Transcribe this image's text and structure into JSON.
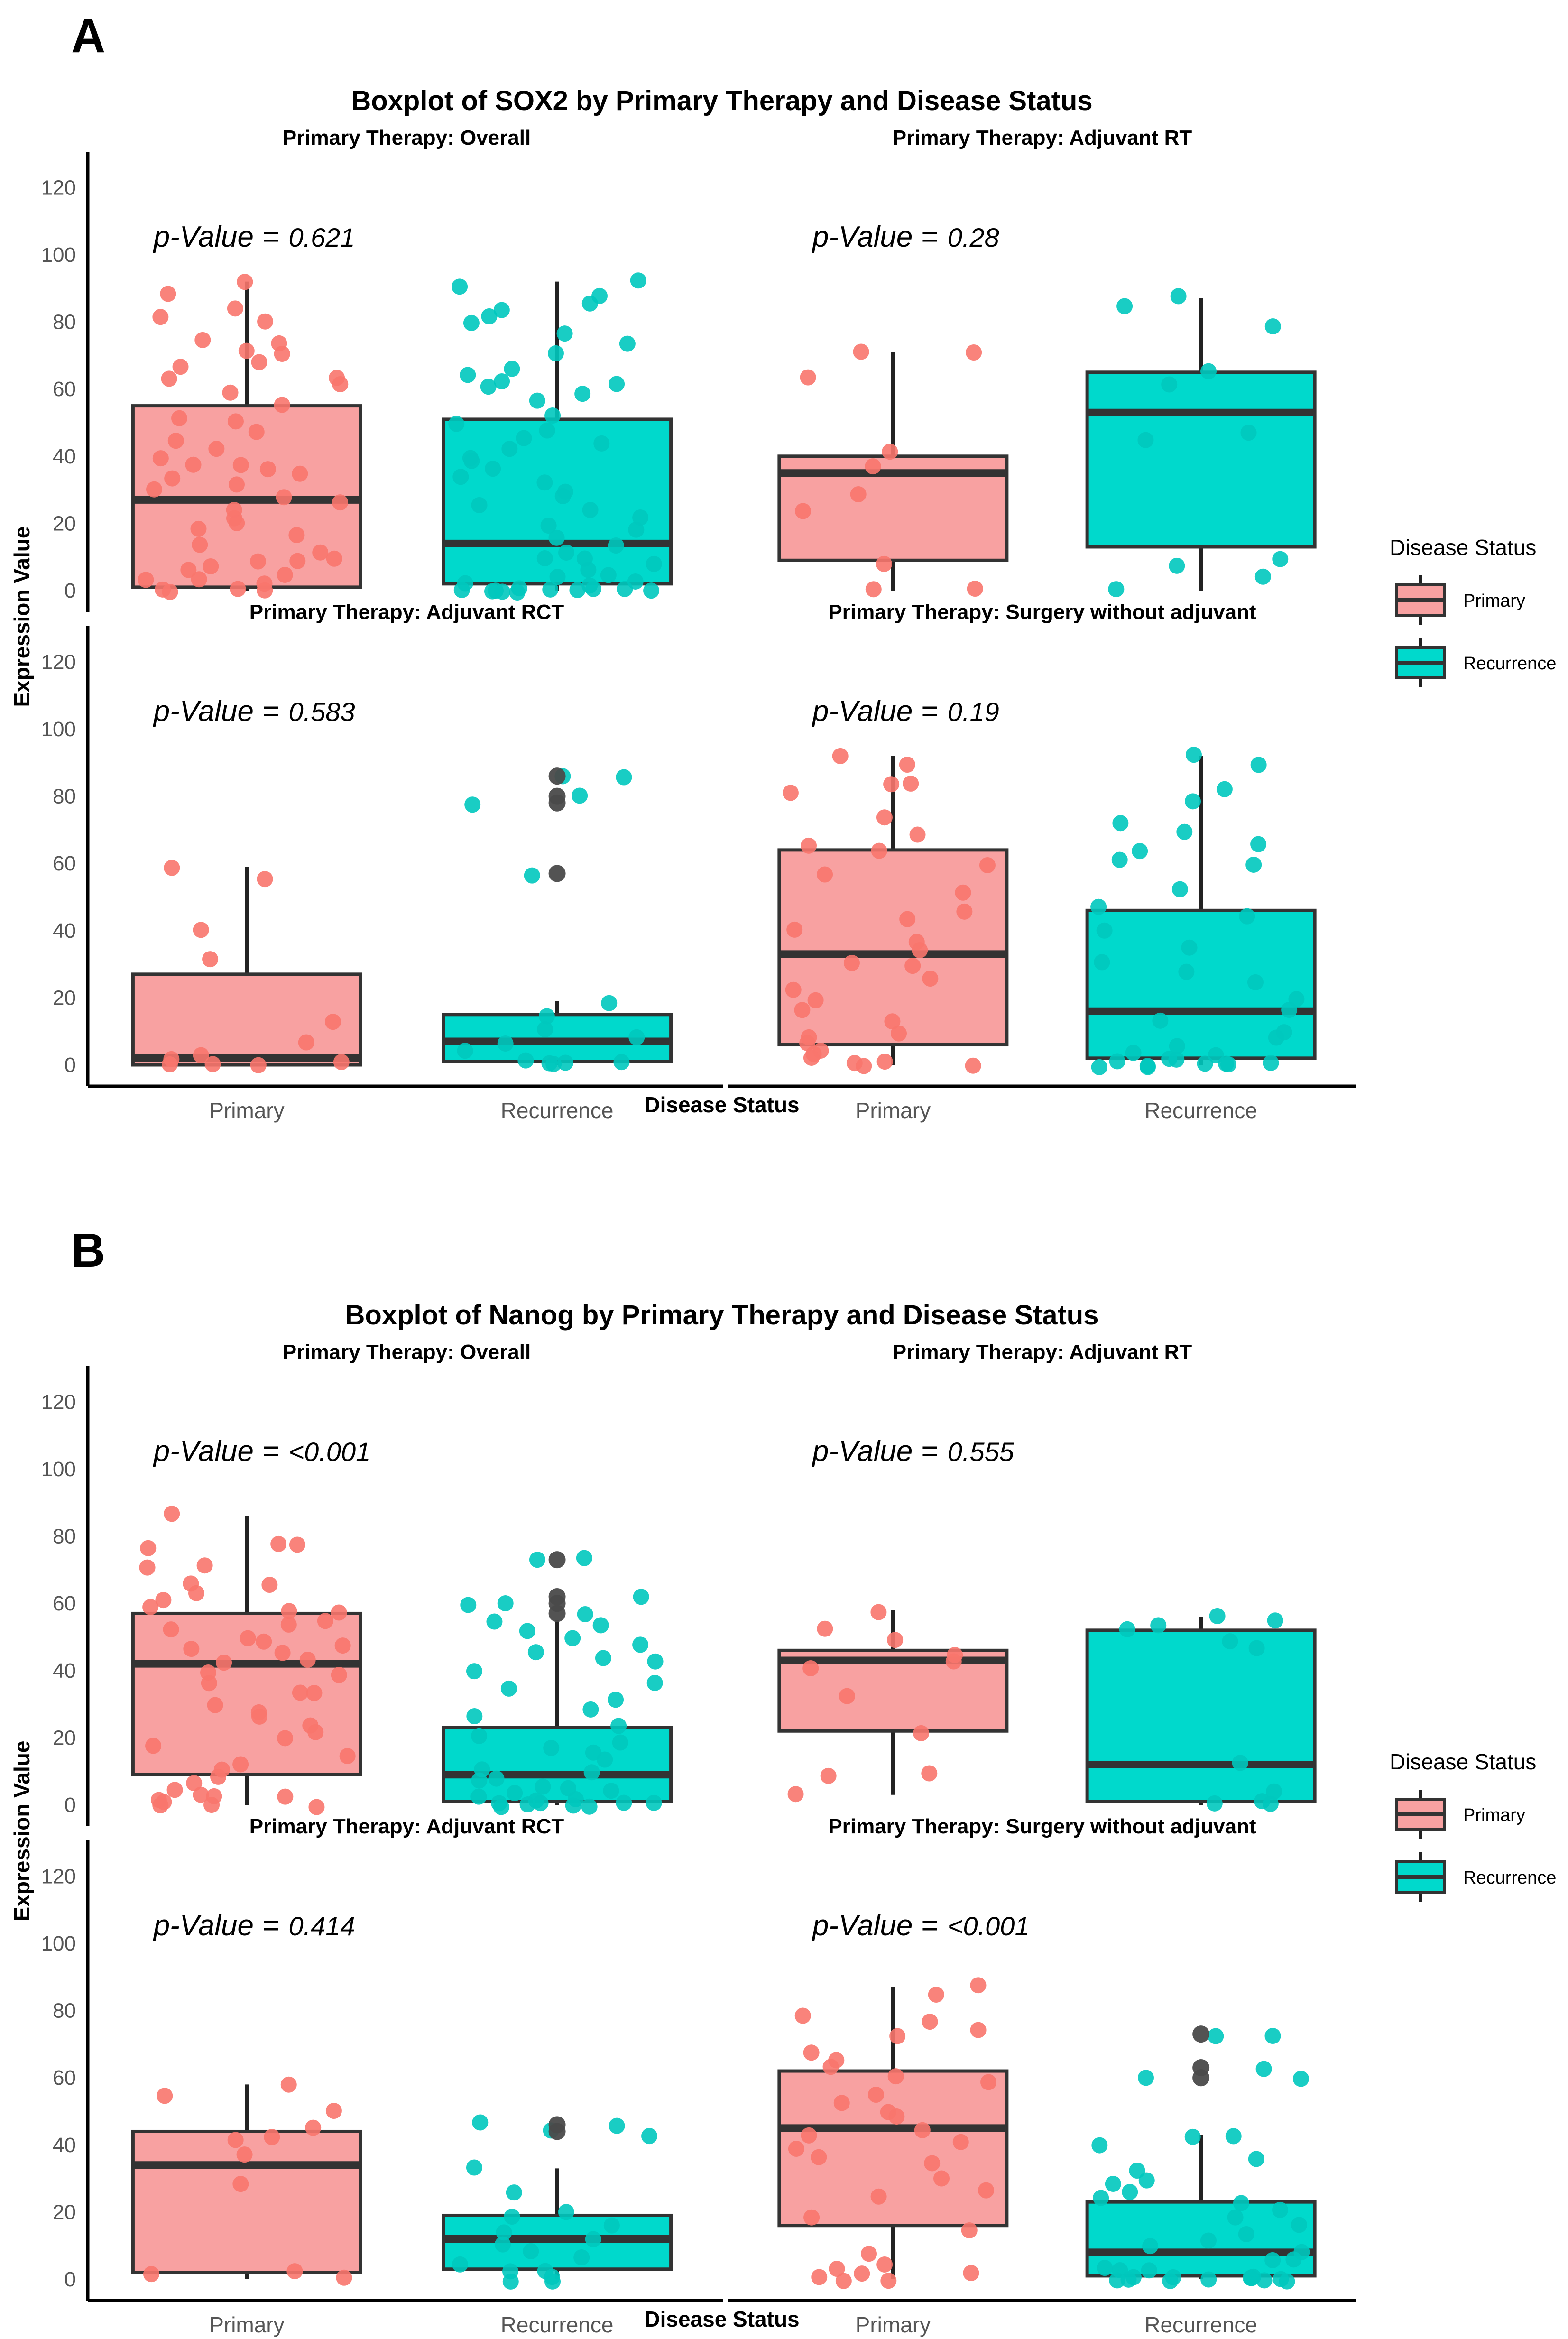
{
  "colors": {
    "primary_fill": "#F8A1A1",
    "primary_point": "#F8766D",
    "recurrence_fill": "#00D9CC",
    "recurrence_point": "#00C8BE",
    "outlier": "#4A4A4A",
    "axis": "#000000",
    "text": "#000000",
    "tick_text": "#555555"
  },
  "legend": {
    "title": "Disease Status",
    "items": [
      "Primary",
      "Recurrence"
    ]
  },
  "chart_data": [
    {
      "type": "boxplot",
      "letter": "A",
      "title": "Boxplot of SOX2 by Primary Therapy and Disease Status",
      "xlabel": "Disease Status",
      "ylabel": "Expression Value",
      "categories": [
        "Primary",
        "Recurrence"
      ],
      "y_ticks": [
        0,
        20,
        40,
        60,
        80,
        100,
        120
      ],
      "ylim": [
        0,
        125
      ],
      "p_label": "p-Value =",
      "facets": [
        {
          "label": "Primary Therapy: Overall",
          "p_value": "0.621",
          "boxes": [
            {
              "q1": 1,
              "median": 27,
              "q3": 55,
              "wmin": 0,
              "wmax": 92,
              "outliers": [],
              "points": [
                92,
                88,
                84,
                82,
                80,
                75,
                73,
                71,
                70,
                68,
                66,
                64,
                63,
                61,
                59,
                55,
                52,
                50,
                47,
                45,
                42,
                40,
                38,
                37,
                36,
                35,
                33,
                31,
                30,
                28,
                26,
                24,
                22,
                20,
                18,
                16,
                14,
                12,
                10,
                9,
                8,
                7,
                6,
                5,
                4,
                3,
                2,
                1,
                1,
                0,
                0
              ]
            },
            {
              "q1": 2,
              "median": 14,
              "q3": 51,
              "wmin": 0,
              "wmax": 92,
              "outliers": [],
              "points": [
                92,
                90,
                88,
                86,
                84,
                81,
                79,
                77,
                73,
                70,
                66,
                64,
                62,
                61,
                60,
                58,
                56,
                52,
                50,
                48,
                46,
                44,
                42,
                40,
                38,
                36,
                34,
                32,
                30,
                28,
                26,
                24,
                22,
                20,
                18,
                16,
                14,
                12,
                10,
                9,
                8,
                6,
                5,
                4,
                3,
                2,
                1,
                1,
                0,
                0,
                0,
                0,
                0,
                0,
                0,
                0,
                0,
                0
              ]
            }
          ]
        },
        {
          "label": "Primary Therapy: Adjuvant RT",
          "p_value": "0.28",
          "boxes": [
            {
              "q1": 9,
              "median": 35,
              "q3": 40,
              "wmin": 0,
              "wmax": 71,
              "outliers": [],
              "points": [
                71,
                71,
                63,
                41,
                37,
                28,
                24,
                8,
                0,
                0
              ]
            },
            {
              "q1": 13,
              "median": 53,
              "q3": 65,
              "wmin": 0,
              "wmax": 87,
              "outliers": [],
              "points": [
                87,
                85,
                78,
                65,
                61,
                47,
                45,
                10,
                8,
                4,
                0
              ]
            }
          ]
        },
        {
          "label": "Primary Therapy: Adjuvant RCT",
          "p_value": "0.583",
          "boxes": [
            {
              "q1": 0,
              "median": 2,
              "q3": 27,
              "wmin": 0,
              "wmax": 59,
              "outliers": [],
              "points": [
                59,
                56,
                40,
                31,
                13,
                7,
                3,
                2,
                1,
                0,
                0,
                0
              ]
            },
            {
              "q1": 1,
              "median": 7,
              "q3": 15,
              "wmin": 0,
              "wmax": 19,
              "outliers": [
                86,
                80,
                78,
                57
              ],
              "points": [
                86,
                86,
                80,
                77,
                57,
                19,
                15,
                10,
                8,
                6,
                4,
                2,
                1,
                0,
                0,
                0
              ]
            }
          ]
        },
        {
          "label": "Primary Therapy: Surgery without adjuvant",
          "p_value": "0.19",
          "boxes": [
            {
              "q1": 6,
              "median": 33,
              "q3": 64,
              "wmin": 0,
              "wmax": 92,
              "outliers": [],
              "points": [
                92,
                89,
                84,
                83,
                81,
                73,
                68,
                65,
                64,
                60,
                56,
                52,
                46,
                44,
                40,
                36,
                34,
                31,
                29,
                26,
                22,
                19,
                16,
                13,
                10,
                8,
                6,
                4,
                3,
                2,
                1,
                1,
                0,
                0
              ]
            },
            {
              "q1": 2,
              "median": 16,
              "q3": 46,
              "wmin": 0,
              "wmax": 92,
              "outliers": [],
              "points": [
                92,
                89,
                82,
                79,
                72,
                69,
                66,
                64,
                61,
                59,
                52,
                47,
                44,
                40,
                35,
                31,
                28,
                24,
                20,
                16,
                13,
                10,
                8,
                6,
                4,
                3,
                2,
                1,
                1,
                0,
                0,
                0,
                0,
                0,
                0,
                0
              ]
            }
          ]
        }
      ]
    },
    {
      "type": "boxplot",
      "letter": "B",
      "title": "Boxplot of Nanog by Primary Therapy and Disease Status",
      "xlabel": "Disease Status",
      "ylabel": "Expression Value",
      "categories": [
        "Primary",
        "Recurrence"
      ],
      "y_ticks": [
        0,
        20,
        40,
        60,
        80,
        100,
        120
      ],
      "ylim": [
        0,
        125
      ],
      "p_label": "p-Value =",
      "facets": [
        {
          "label": "Primary Therapy: Overall",
          "p_value": "<0.001",
          "boxes": [
            {
              "q1": 9,
              "median": 42,
              "q3": 57,
              "wmin": 0,
              "wmax": 86,
              "outliers": [],
              "points": [
                86,
                78,
                77,
                76,
                72,
                70,
                66,
                65,
                63,
                61,
                59,
                58,
                57,
                55,
                53,
                52,
                50,
                49,
                48,
                46,
                45,
                43,
                42,
                40,
                38,
                36,
                34,
                33,
                30,
                28,
                26,
                24,
                22,
                20,
                18,
                14,
                12,
                10,
                8,
                6,
                4,
                3,
                2,
                2,
                1,
                1,
                0,
                0,
                0
              ]
            },
            {
              "q1": 1,
              "median": 9,
              "q3": 23,
              "wmin": 0,
              "wmax": 55,
              "outliers": [
                73,
                62,
                60,
                57
              ],
              "points": [
                73,
                73,
                62,
                60,
                59,
                57,
                55,
                54,
                52,
                50,
                48,
                46,
                44,
                42,
                40,
                37,
                34,
                31,
                29,
                26,
                23,
                21,
                19,
                17,
                15,
                13,
                11,
                9,
                8,
                7,
                6,
                5,
                4,
                3,
                2,
                1,
                1,
                0,
                0,
                0,
                0,
                0,
                0,
                0,
                0
              ]
            }
          ]
        },
        {
          "label": "Primary Therapy: Adjuvant RT",
          "p_value": "0.555",
          "boxes": [
            {
              "q1": 22,
              "median": 43,
              "q3": 46,
              "wmin": 3,
              "wmax": 58,
              "outliers": [],
              "points": [
                58,
                52,
                49,
                45,
                43,
                41,
                33,
                22,
                10,
                9,
                3
              ]
            },
            {
              "q1": 1,
              "median": 12,
              "q3": 52,
              "wmin": 0,
              "wmax": 56,
              "outliers": [],
              "points": [
                56,
                55,
                53,
                52,
                49,
                47,
                12,
                4,
                1,
                0,
                0
              ]
            }
          ]
        },
        {
          "label": "Primary Therapy: Adjuvant RCT",
          "p_value": "0.414",
          "boxes": [
            {
              "q1": 2,
              "median": 34,
              "q3": 44,
              "wmin": 0,
              "wmax": 58,
              "outliers": [],
              "points": [
                58,
                55,
                50,
                45,
                42,
                41,
                37,
                29,
                3,
                2,
                0
              ]
            },
            {
              "q1": 3,
              "median": 12,
              "q3": 19,
              "wmin": 0,
              "wmax": 33,
              "outliers": [
                46,
                44
              ],
              "points": [
                46,
                45,
                44,
                43,
                33,
                26,
                20,
                18,
                16,
                14,
                12,
                10,
                8,
                6,
                4,
                3,
                2,
                1,
                0,
                0
              ]
            }
          ]
        },
        {
          "label": "Primary Therapy: Surgery without adjuvant",
          "p_value": "<0.001",
          "boxes": [
            {
              "q1": 16,
              "median": 45,
              "q3": 62,
              "wmin": 0,
              "wmax": 87,
              "outliers": [],
              "points": [
                87,
                85,
                79,
                77,
                74,
                72,
                68,
                65,
                63,
                61,
                58,
                55,
                52,
                50,
                48,
                45,
                43,
                41,
                39,
                36,
                34,
                30,
                27,
                24,
                19,
                15,
                8,
                4,
                3,
                2,
                1,
                1,
                0,
                0
              ]
            },
            {
              "q1": 1,
              "median": 8,
              "q3": 23,
              "wmin": 0,
              "wmax": 43,
              "outliers": [
                73,
                63,
                60
              ],
              "points": [
                73,
                73,
                63,
                60,
                59,
                43,
                42,
                40,
                36,
                33,
                30,
                28,
                26,
                24,
                22,
                20,
                18,
                16,
                14,
                12,
                10,
                8,
                6,
                5,
                4,
                3,
                2,
                1,
                1,
                0,
                0,
                0,
                0,
                0,
                0,
                0,
                0,
                0,
                0
              ]
            }
          ]
        }
      ]
    }
  ]
}
